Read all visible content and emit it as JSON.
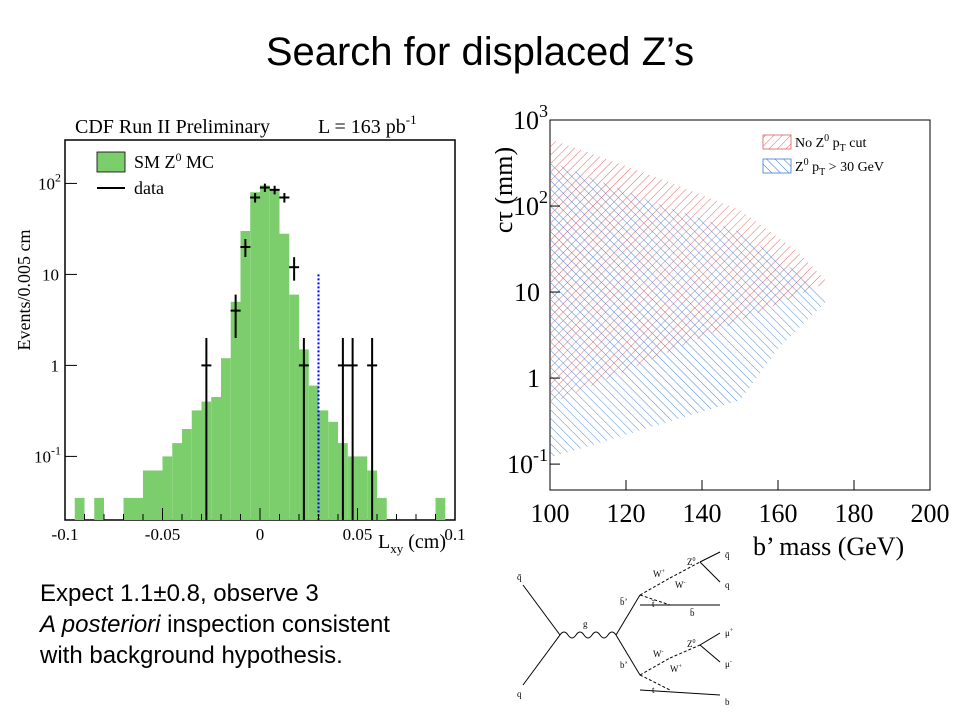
{
  "slide": {
    "title": "Search for displaced Z’s",
    "caption": {
      "line1": "Expect 1.1±0.8, observe 3",
      "line2_italic": "A posteriori",
      "line2_rest": " inspection consistent",
      "line3": "with background hypothesis."
    }
  },
  "chart_data": [
    {
      "type": "histogram",
      "header_left": "CDF Run II Preliminary",
      "header_right": "L = 163 pb",
      "header_right_sup": "-1",
      "xlabel": "L",
      "xlabel_sub": "xy",
      "xlabel_unit": " (cm)",
      "ylabel": "Events/0.005 cm",
      "log_y": true,
      "xlim": [
        -0.1,
        0.1
      ],
      "ylim": [
        0.02,
        300
      ],
      "x_ticks": [
        {
          "v": -0.1,
          "label": "-0.1"
        },
        {
          "v": -0.05,
          "label": "-0.05"
        },
        {
          "v": 0,
          "label": "0"
        },
        {
          "v": 0.05,
          "label": "0.05"
        },
        {
          "v": 0.1,
          "label": "0.1"
        }
      ],
      "y_ticks": [
        {
          "v": 0.1,
          "base": "10",
          "sup": "-1"
        },
        {
          "v": 1,
          "base": "1",
          "sup": ""
        },
        {
          "v": 10,
          "base": "10",
          "sup": ""
        },
        {
          "v": 100,
          "base": "10",
          "sup": "2"
        }
      ],
      "legend": [
        {
          "label": "SM Z",
          "sup": "0",
          "rest": " MC",
          "kind": "fill",
          "color": "#7ccd6b"
        },
        {
          "label": "data",
          "sup": "",
          "rest": "",
          "kind": "line",
          "color": "#000000"
        }
      ],
      "mc_bins": [
        {
          "x0": -0.095,
          "x1": -0.09,
          "v": 0.035
        },
        {
          "x0": -0.085,
          "x1": -0.08,
          "v": 0.035
        },
        {
          "x0": -0.07,
          "x1": -0.06,
          "v": 0.035
        },
        {
          "x0": -0.06,
          "x1": -0.05,
          "v": 0.07
        },
        {
          "x0": -0.05,
          "x1": -0.045,
          "v": 0.1
        },
        {
          "x0": -0.045,
          "x1": -0.04,
          "v": 0.14
        },
        {
          "x0": -0.04,
          "x1": -0.035,
          "v": 0.2
        },
        {
          "x0": -0.035,
          "x1": -0.03,
          "v": 0.32
        },
        {
          "x0": -0.03,
          "x1": -0.025,
          "v": 0.4
        },
        {
          "x0": -0.025,
          "x1": -0.02,
          "v": 0.45
        },
        {
          "x0": -0.02,
          "x1": -0.015,
          "v": 1.2
        },
        {
          "x0": -0.015,
          "x1": -0.01,
          "v": 5
        },
        {
          "x0": -0.01,
          "x1": -0.005,
          "v": 30
        },
        {
          "x0": -0.005,
          "x1": 0.0,
          "v": 80
        },
        {
          "x0": 0.0,
          "x1": 0.005,
          "v": 95
        },
        {
          "x0": 0.005,
          "x1": 0.01,
          "v": 85
        },
        {
          "x0": 0.01,
          "x1": 0.015,
          "v": 28
        },
        {
          "x0": 0.015,
          "x1": 0.02,
          "v": 6
        },
        {
          "x0": 0.02,
          "x1": 0.025,
          "v": 1.5
        },
        {
          "x0": 0.025,
          "x1": 0.03,
          "v": 0.6
        },
        {
          "x0": 0.03,
          "x1": 0.035,
          "v": 0.32
        },
        {
          "x0": 0.035,
          "x1": 0.04,
          "v": 0.24
        },
        {
          "x0": 0.04,
          "x1": 0.045,
          "v": 0.14
        },
        {
          "x0": 0.045,
          "x1": 0.05,
          "v": 0.1
        },
        {
          "x0": 0.05,
          "x1": 0.055,
          "v": 0.1
        },
        {
          "x0": 0.055,
          "x1": 0.06,
          "v": 0.07
        },
        {
          "x0": 0.06,
          "x1": 0.065,
          "v": 0.035
        },
        {
          "x0": 0.09,
          "x1": 0.095,
          "v": 0.035
        }
      ],
      "data_points": [
        {
          "x": -0.0275,
          "v": 1
        },
        {
          "x": -0.0125,
          "v": 4
        },
        {
          "x": -0.0075,
          "v": 20
        },
        {
          "x": -0.0025,
          "v": 70
        },
        {
          "x": 0.0025,
          "v": 90
        },
        {
          "x": 0.0075,
          "v": 85
        },
        {
          "x": 0.0125,
          "v": 70
        },
        {
          "x": 0.0175,
          "v": 12
        },
        {
          "x": 0.0225,
          "v": 1
        },
        {
          "x": 0.0425,
          "v": 1
        },
        {
          "x": 0.0475,
          "v": 1
        },
        {
          "x": 0.0575,
          "v": 1
        }
      ],
      "cut_line_x": 0.03,
      "colors": {
        "mc": "#7ccd6b",
        "cut": "#0000ff"
      }
    },
    {
      "type": "area",
      "ylabel": "cτ (mm)",
      "xlabel": "b’ mass (GeV)",
      "log_y": true,
      "xlim": [
        100,
        200
      ],
      "ylim": [
        0.05,
        1000
      ],
      "x_ticks": [
        100,
        120,
        140,
        160,
        180,
        200
      ],
      "y_ticks": [
        {
          "v": 1000,
          "base": "10",
          "sup": "3"
        },
        {
          "v": 100,
          "base": "10",
          "sup": "2"
        },
        {
          "v": 10,
          "base": "10",
          "sup": ""
        },
        {
          "v": 1,
          "base": "1",
          "sup": ""
        },
        {
          "v": 0.1,
          "base": "10",
          "sup": "-1"
        }
      ],
      "series": [
        {
          "name_main": "No Z",
          "name_sup": "0",
          "name_mid": " p",
          "name_sub": "T",
          "name_rest": " cut",
          "color": "#e05a5a",
          "upper": [
            [
              100,
              600
            ],
            [
              110,
              420
            ],
            [
              130,
              200
            ],
            [
              150,
              90
            ],
            [
              165,
              30
            ],
            [
              173,
              13
            ]
          ],
          "lower": [
            [
              173,
              13
            ],
            [
              100,
              0.5
            ]
          ]
        },
        {
          "name_main": "Z",
          "name_sup": "0",
          "name_mid": " p",
          "name_sub": "T",
          "name_rest": " > 30 GeV",
          "color": "#3a7ad6",
          "upper": [
            [
              100,
              330
            ],
            [
              110,
              220
            ],
            [
              130,
              100
            ],
            [
              150,
              50
            ],
            [
              165,
              17
            ],
            [
              173,
              8
            ]
          ],
          "lower": [
            [
              173,
              8
            ],
            [
              160,
              2.2
            ],
            [
              150,
              0.55
            ],
            [
              130,
              0.3
            ],
            [
              110,
              0.16
            ],
            [
              100,
              0.12
            ]
          ]
        }
      ]
    }
  ],
  "feynman": {
    "labels": {
      "q_bar_in": "q̄",
      "q_in": "q",
      "gluon": "g",
      "b_prime_bar": "b̄’",
      "b_prime": "b’",
      "w_plus_top": "W",
      "w_plus_top_sup": "+",
      "z0_top": "Z",
      "z0_top_sup": "0",
      "w_minus_top": "W",
      "w_minus_top_sup": "-",
      "t_bar": "t̄",
      "b_bar_out": "b̄",
      "q_bar_out": "q̄",
      "q_out": "q",
      "w_minus_bot": "W",
      "w_minus_bot_sup": "-",
      "z0_bot": "Z",
      "z0_bot_sup": "0",
      "w_plus_bot": "W",
      "w_plus_bot_sup": "+",
      "t_bot": "t",
      "mu_plus": "μ",
      "mu_plus_sup": "+",
      "mu_minus": "μ",
      "mu_minus_sup": "-",
      "b_out": "b"
    }
  }
}
